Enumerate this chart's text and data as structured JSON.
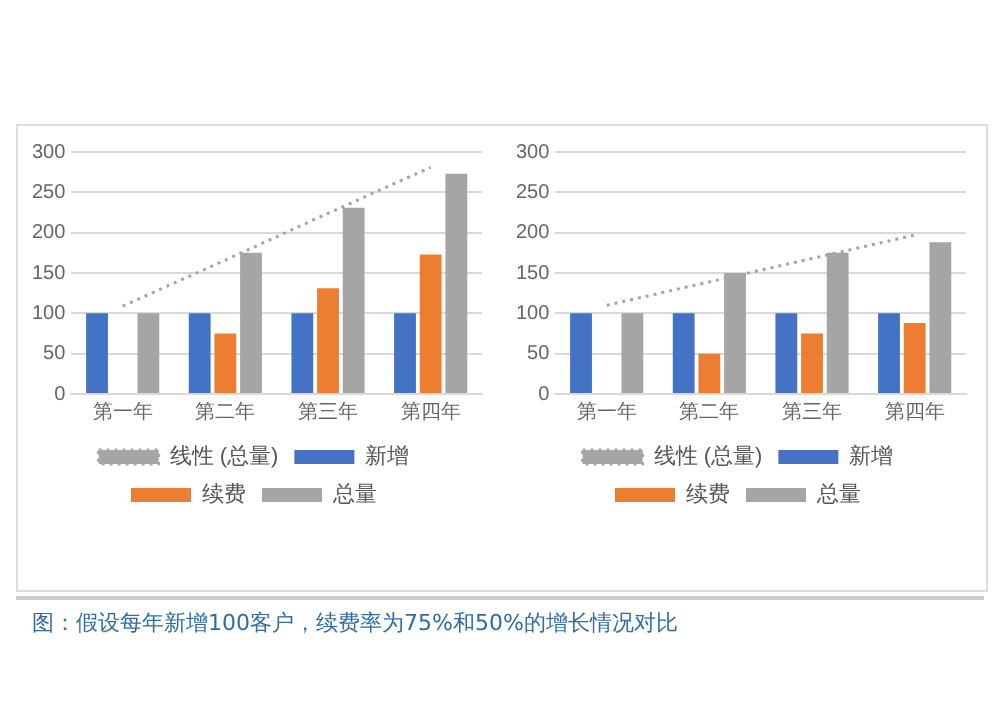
{
  "chart_data": [
    {
      "type": "bar",
      "categories": [
        "第一年",
        "第二年",
        "第三年",
        "第四年"
      ],
      "ylim": [
        0,
        300
      ],
      "yticks": [
        0,
        50,
        100,
        150,
        200,
        250,
        300
      ],
      "grid": "y",
      "legend": "bottom",
      "series": [
        {
          "name": "新增",
          "color": "#4472c4",
          "values": [
            100,
            100,
            100,
            100
          ]
        },
        {
          "name": "续费",
          "color": "#ed7d31",
          "values": [
            0,
            75,
            131,
            173
          ]
        },
        {
          "name": "总量",
          "color": "#a5a5a5",
          "values": [
            100,
            175,
            231,
            273
          ]
        },
        {
          "name": "线性 (总量)",
          "type": "line",
          "color": "#a5a5a5",
          "line_style": "dotted",
          "marker": "none",
          "values": [
            109,
            166,
            224,
            281
          ]
        }
      ],
      "annotations": [
        "图：假设每年新增100客户，续费率为75%和50%的增长情况对比"
      ]
    },
    {
      "type": "bar",
      "categories": [
        "第一年",
        "第二年",
        "第三年",
        "第四年"
      ],
      "ylim": [
        0,
        300
      ],
      "yticks": [
        0,
        50,
        100,
        150,
        200,
        250,
        300
      ],
      "grid": "y",
      "legend": "bottom",
      "series": [
        {
          "name": "新增",
          "color": "#4472c4",
          "values": [
            100,
            100,
            100,
            100
          ]
        },
        {
          "name": "续费",
          "color": "#ed7d31",
          "values": [
            0,
            50,
            75,
            88
          ]
        },
        {
          "name": "总量",
          "color": "#a5a5a5",
          "values": [
            100,
            150,
            175,
            188
          ]
        },
        {
          "name": "线性 (总量)",
          "type": "line",
          "color": "#a5a5a5",
          "line_style": "dotted",
          "marker": "none",
          "values": [
            110,
            139,
            168,
            197
          ]
        }
      ]
    }
  ]
}
